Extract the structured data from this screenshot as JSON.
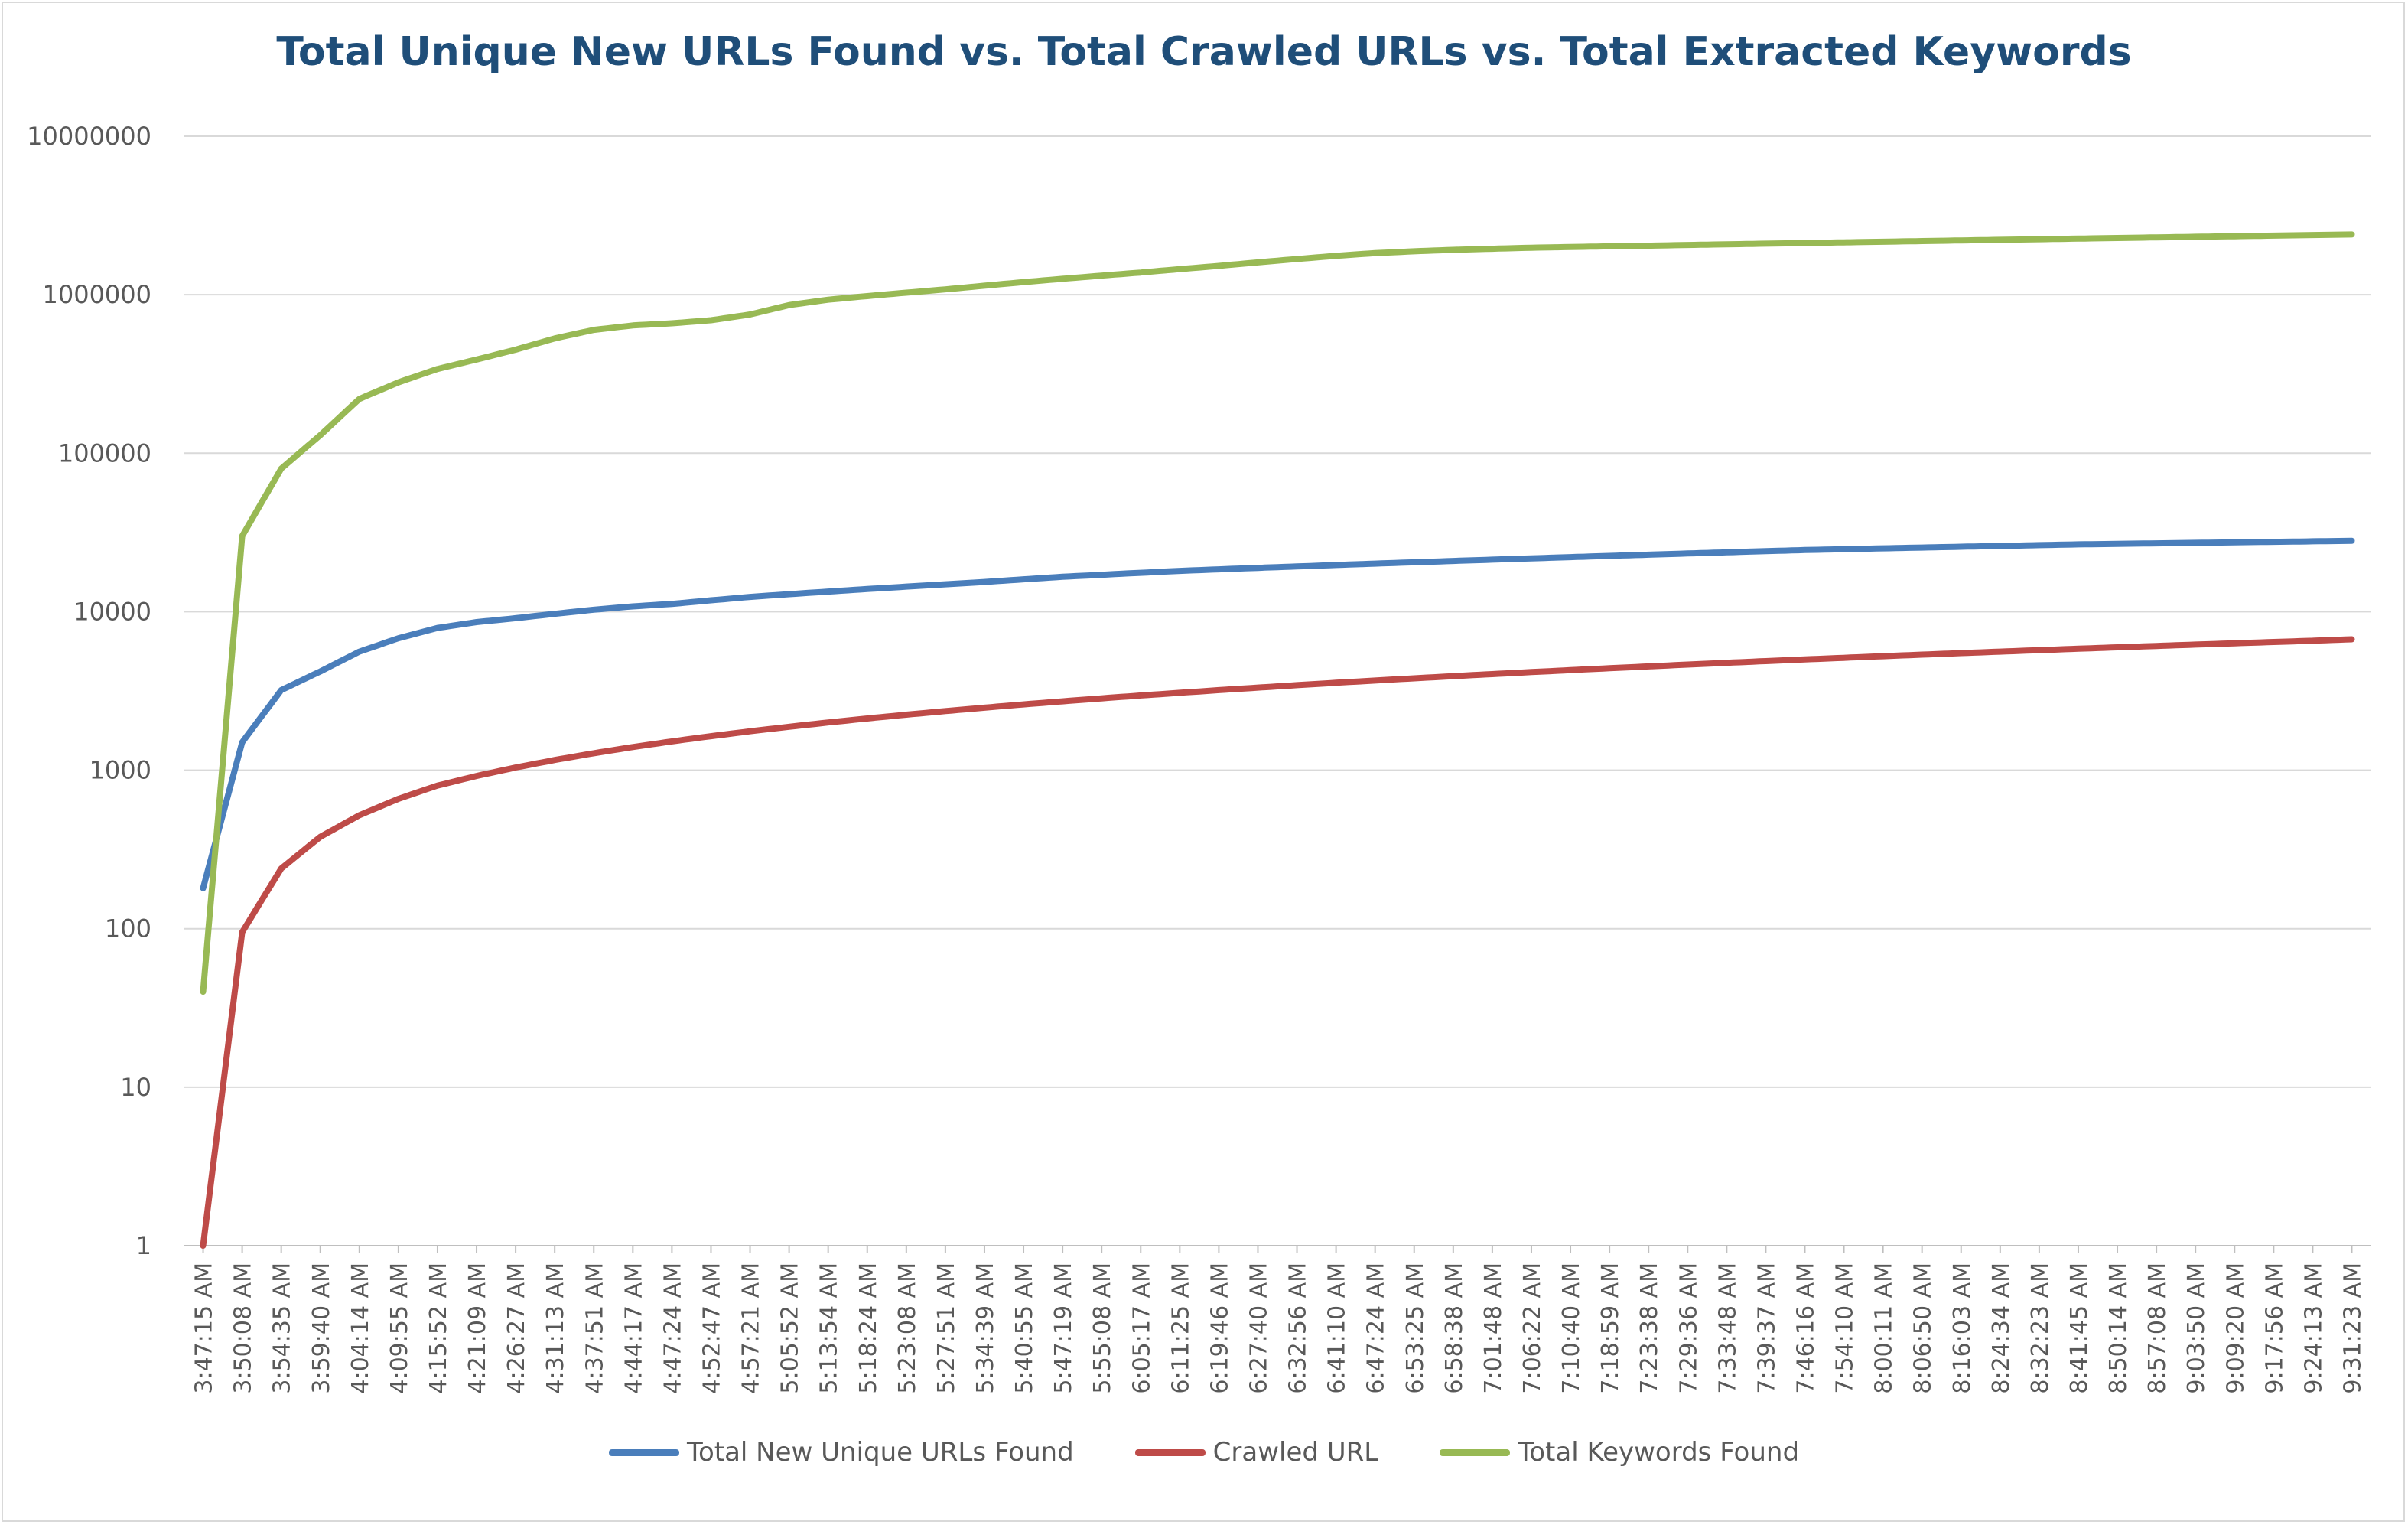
{
  "chart_data": {
    "type": "line",
    "title": "Total Unique New URLs Found vs. Total Crawled URLs vs. Total Extracted Keywords",
    "xlabel": "",
    "ylabel": "",
    "yscale": "log",
    "ylim": [
      1,
      10000000
    ],
    "y_ticks": [
      "1",
      "10",
      "100",
      "1000",
      "10000",
      "100000",
      "1000000",
      "10000000"
    ],
    "grid": "horizontal",
    "legend_position": "bottom",
    "categories": [
      "3:47:15 AM",
      "3:50:08 AM",
      "3:54:35 AM",
      "3:59:40 AM",
      "4:04:14 AM",
      "4:09:55 AM",
      "4:15:52 AM",
      "4:21:09 AM",
      "4:26:27 AM",
      "4:31:13 AM",
      "4:37:51 AM",
      "4:44:17 AM",
      "4:47:24 AM",
      "4:52:47 AM",
      "4:57:21 AM",
      "5:05:52 AM",
      "5:13:54 AM",
      "5:18:24 AM",
      "5:23:08 AM",
      "5:27:51 AM",
      "5:34:39 AM",
      "5:40:55 AM",
      "5:47:19 AM",
      "5:55:08 AM",
      "6:05:17 AM",
      "6:11:25 AM",
      "6:19:46 AM",
      "6:27:40 AM",
      "6:32:56 AM",
      "6:41:10 AM",
      "6:47:24 AM",
      "6:53:25 AM",
      "6:58:38 AM",
      "7:01:48 AM",
      "7:06:22 AM",
      "7:10:40 AM",
      "7:18:59 AM",
      "7:23:38 AM",
      "7:29:36 AM",
      "7:33:48 AM",
      "7:39:37 AM",
      "7:46:16 AM",
      "7:54:10 AM",
      "8:00:11 AM",
      "8:06:50 AM",
      "8:16:03 AM",
      "8:24:34 AM",
      "8:32:23 AM",
      "8:41:45 AM",
      "8:50:14 AM",
      "8:57:08 AM",
      "9:03:50 AM",
      "9:09:20 AM",
      "9:17:56 AM",
      "9:24:13 AM",
      "9:31:23 AM"
    ],
    "series": [
      {
        "name": "Total New Unique URLs Found",
        "color": "#4a7ebb",
        "values": [
          180,
          1500,
          3200,
          4200,
          5600,
          6800,
          7900,
          8600,
          9100,
          9700,
          10300,
          10800,
          11200,
          11800,
          12400,
          12900,
          13400,
          13900,
          14400,
          14900,
          15400,
          16000,
          16600,
          17100,
          17600,
          18100,
          18500,
          18900,
          19300,
          19700,
          20100,
          20500,
          20900,
          21300,
          21700,
          22100,
          22500,
          22900,
          23300,
          23700,
          24100,
          24500,
          24800,
          25100,
          25400,
          25700,
          26000,
          26300,
          26600,
          26800,
          27000,
          27200,
          27400,
          27600,
          27800,
          28000
        ]
      },
      {
        "name": "Crawled URL",
        "color": "#be4b48",
        "values": [
          1,
          95,
          240,
          380,
          520,
          660,
          800,
          920,
          1040,
          1160,
          1280,
          1400,
          1520,
          1640,
          1760,
          1880,
          2000,
          2120,
          2240,
          2360,
          2480,
          2600,
          2720,
          2840,
          2960,
          3080,
          3200,
          3320,
          3440,
          3560,
          3680,
          3800,
          3920,
          4040,
          4160,
          4280,
          4400,
          4520,
          4640,
          4760,
          4880,
          5000,
          5120,
          5240,
          5360,
          5480,
          5600,
          5720,
          5840,
          5960,
          6080,
          6200,
          6320,
          6440,
          6560,
          6700
        ]
      },
      {
        "name": "Total Keywords Found",
        "color": "#98b954",
        "values": [
          40,
          30000,
          80000,
          130000,
          220000,
          280000,
          340000,
          390000,
          450000,
          530000,
          600000,
          640000,
          660000,
          690000,
          750000,
          860000,
          930000,
          980000,
          1030000,
          1080000,
          1140000,
          1200000,
          1260000,
          1320000,
          1380000,
          1450000,
          1520000,
          1600000,
          1680000,
          1760000,
          1830000,
          1880000,
          1920000,
          1950000,
          1980000,
          2000000,
          2020000,
          2040000,
          2060000,
          2080000,
          2100000,
          2120000,
          2140000,
          2160000,
          2180000,
          2200000,
          2220000,
          2240000,
          2260000,
          2280000,
          2300000,
          2320000,
          2340000,
          2360000,
          2380000,
          2400000
        ]
      }
    ]
  }
}
